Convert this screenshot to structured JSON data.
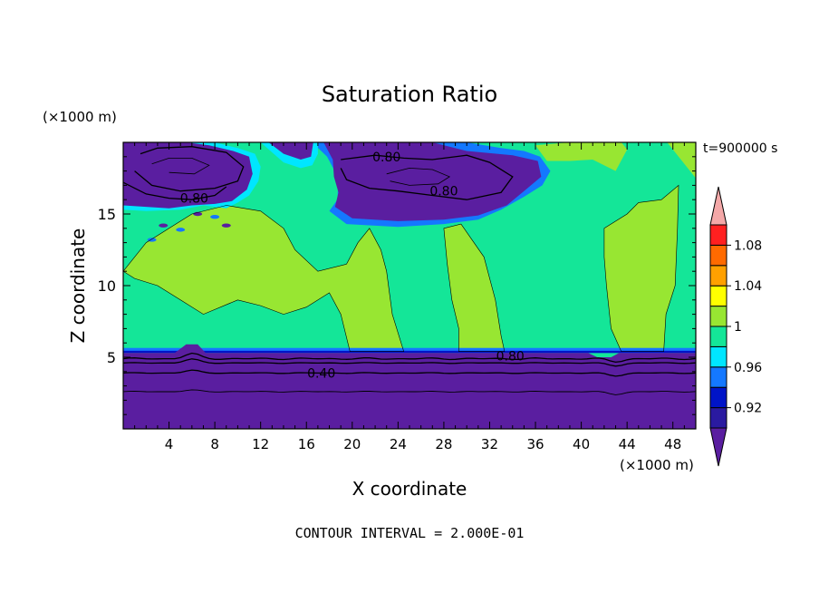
{
  "chart_data": {
    "type": "contour",
    "title": "Saturation Ratio",
    "xlabel": "X coordinate",
    "ylabel": "Z coordinate",
    "x_unit": "(×1000 m)",
    "y_unit": "(×1000 m)",
    "time_label": "t=900000 s",
    "footer": "CONTOUR INTERVAL = 2.000E-01",
    "xlim": [
      0,
      50
    ],
    "ylim": [
      0,
      20
    ],
    "x_ticks": [
      4,
      8,
      12,
      16,
      20,
      24,
      28,
      32,
      36,
      40,
      44,
      48
    ],
    "y_ticks": [
      5,
      10,
      15
    ],
    "contour_labels": [
      {
        "text": "0.80",
        "x": 23,
        "y": 19.0
      },
      {
        "text": "0.80",
        "x": 6.2,
        "y": 16.1
      },
      {
        "text": "0.80",
        "x": 28,
        "y": 16.6
      },
      {
        "text": "0.80",
        "x": 33.8,
        "y": 5.1
      },
      {
        "text": "0.40",
        "x": 17.3,
        "y": 3.9
      }
    ],
    "colorbar": {
      "levels": [
        0.9,
        0.92,
        0.94,
        0.96,
        0.98,
        1.0,
        1.02,
        1.04,
        1.06,
        1.08,
        1.1
      ],
      "tick_labels": [
        "0.92",
        "0.96",
        "1",
        "1.04",
        "1.08"
      ],
      "colors": [
        "#5a1ea0",
        "#2a1aa0",
        "#0014c8",
        "#1478ff",
        "#00e6ff",
        "#14e698",
        "#98e632",
        "#ffff00",
        "#ffa000",
        "#ff6a00",
        "#ff2020",
        "#f4a8a8"
      ]
    },
    "regions": {
      "lower_dry_layer_top_km": 5.3,
      "upper_dry_patch_1": {
        "x": [
          2,
          11
        ],
        "z": [
          17,
          20
        ]
      },
      "upper_dry_patch_2": {
        "x": [
          18,
          37
        ],
        "z": [
          14.3,
          20
        ]
      },
      "upper_contours_z": [
        19.0,
        17.4
      ],
      "lower_contours_z": [
        4.9,
        4.6,
        3.9,
        2.6
      ]
    }
  }
}
